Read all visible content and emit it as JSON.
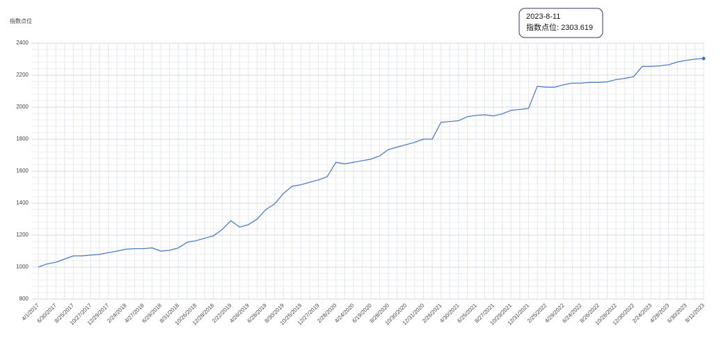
{
  "chart_data": {
    "type": "line",
    "ylabel": "指数点位",
    "annotation": {
      "title": "2023-8-11",
      "text": "指数点位: 2303.619"
    },
    "categories": [
      "4/1/2017",
      null,
      "6/30/2017",
      null,
      "8/25/2017",
      null,
      "10/27/2017",
      null,
      "12/29/2017",
      null,
      "2/24/2018",
      null,
      "4/27/2018",
      null,
      "6/29/2018",
      null,
      "8/31/2018",
      null,
      "10/26/2018",
      null,
      "12/28/2018",
      null,
      "2/22/2019",
      null,
      "4/26/2019",
      null,
      "6/28/2019",
      null,
      "8/30/2019",
      null,
      "10/25/2019",
      null,
      "12/27/2019",
      null,
      "2/28/2020",
      null,
      "4/24/2020",
      null,
      "6/19/2020",
      null,
      "8/28/2020",
      null,
      "10/30/2020",
      null,
      "12/31/2020",
      null,
      "2/26/2021",
      null,
      "4/30/2021",
      null,
      "6/25/2021",
      null,
      "8/27/2021",
      null,
      "10/29/2021",
      null,
      "12/31/2021",
      null,
      "2/25/2022",
      null,
      "4/29/2022",
      null,
      "6/24/2022",
      null,
      "8/26/2022",
      null,
      "10/28/2022",
      null,
      "12/30/2022",
      null,
      "2/24/2023",
      null,
      "4/28/2023",
      null,
      "6/30/2023",
      null,
      "8/11/2023"
    ],
    "series": [
      {
        "name": "指数点位",
        "color": "#4472c4",
        "values": [
          1000,
          1020,
          1030,
          1050,
          1070,
          1070,
          1075,
          1080,
          1090,
          1100,
          1112,
          1115,
          1115,
          1120,
          1100,
          1105,
          1120,
          1155,
          1165,
          1180,
          1195,
          1235,
          1290,
          1250,
          1265,
          1300,
          1360,
          1395,
          1460,
          1505,
          1515,
          1530,
          1545,
          1565,
          1655,
          1645,
          1655,
          1665,
          1675,
          1695,
          1735,
          1750,
          1765,
          1780,
          1800,
          1800,
          1905,
          1910,
          1915,
          1940,
          1948,
          1952,
          1945,
          1958,
          1980,
          1985,
          1992,
          2130,
          2125,
          2125,
          2140,
          2150,
          2150,
          2155,
          2155,
          2158,
          2172,
          2180,
          2190,
          2255,
          2255,
          2258,
          2265,
          2282,
          2292,
          2300,
          2303.619
        ]
      }
    ],
    "ylim": [
      800,
      2400
    ],
    "yticks": [
      800,
      1000,
      1200,
      1400,
      1600,
      1800,
      2000,
      2200,
      2400
    ],
    "grid": true
  }
}
